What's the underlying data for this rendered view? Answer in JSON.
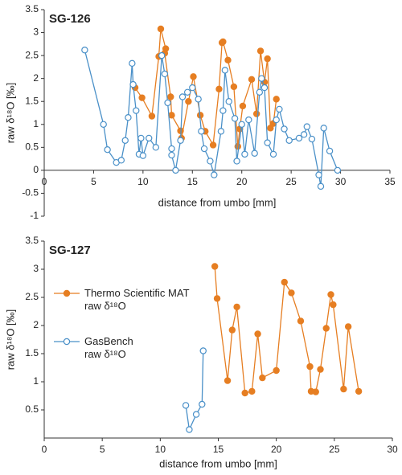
{
  "chart_data": [
    {
      "type": "line",
      "title": "SG-126",
      "xlabel": "distance from umbo [mm]",
      "ylabel": "raw δ¹⁸O [‰]",
      "xlim": [
        0,
        35
      ],
      "xticks": [
        0,
        5,
        10,
        15,
        20,
        25,
        30,
        35
      ],
      "ylim": [
        -1,
        3.5
      ],
      "yticks": [
        -1,
        -0.5,
        0,
        0.5,
        1,
        1.5,
        2,
        2.5,
        3,
        3.5
      ],
      "series": [
        {
          "color": "#e67e22",
          "marker": "filled",
          "x": [
            9.2,
            9.9,
            10.9,
            11.6,
            11.8,
            12.3,
            12.2,
            12.8,
            12.9,
            13.8,
            13.9,
            14.6,
            15.1,
            15.8,
            16.3,
            17.1,
            17.7,
            18.0,
            18.1,
            18.6,
            19.2,
            19.6,
            19.8,
            20.1,
            21.0,
            21.5,
            21.9,
            22.3,
            22.6,
            22.9,
            23.2,
            23.5
          ],
          "values": [
            1.8,
            1.58,
            1.18,
            2.48,
            3.08,
            2.65,
            2.55,
            1.6,
            1.2,
            0.86,
            0.7,
            1.5,
            2.04,
            1.2,
            0.85,
            0.55,
            1.77,
            2.78,
            2.8,
            2.4,
            1.82,
            0.52,
            0.9,
            1.4,
            1.98,
            1.23,
            2.6,
            1.92,
            2.43,
            0.92,
            1.02,
            1.55
          ]
        },
        {
          "color": "#4a90c8",
          "marker": "open",
          "x": [
            4.1,
            6.0,
            6.4,
            7.3,
            7.8,
            8.2,
            8.5,
            8.9,
            9.0,
            9.3,
            9.6,
            9.8,
            10.0,
            10.6,
            11.3,
            11.9,
            12.2,
            12.5,
            12.9,
            12.9,
            13.3,
            13.8,
            14.0,
            14.5,
            15.0,
            15.6,
            15.9,
            16.2,
            16.8,
            17.2,
            17.9,
            18.1,
            18.3,
            18.7,
            19.3,
            19.5,
            20.0,
            20.3,
            20.7,
            21.3,
            21.8,
            22.0,
            22.3,
            22.6,
            23.2,
            23.5,
            23.8,
            24.3,
            24.8,
            25.8,
            26.3,
            26.6,
            27.1,
            27.8,
            28.0,
            28.3,
            28.9,
            29.7
          ],
          "values": [
            2.62,
            1.0,
            0.45,
            0.17,
            0.22,
            0.65,
            1.15,
            2.33,
            1.87,
            1.3,
            0.35,
            0.7,
            0.32,
            0.7,
            0.5,
            2.5,
            2.1,
            1.47,
            0.47,
            0.33,
            0.0,
            0.65,
            1.6,
            1.7,
            1.8,
            1.55,
            0.85,
            0.47,
            0.2,
            -0.1,
            0.85,
            1.3,
            2.18,
            1.5,
            1.13,
            0.2,
            1.0,
            0.35,
            1.1,
            0.37,
            1.7,
            2.0,
            1.8,
            0.6,
            0.35,
            1.1,
            1.33,
            0.9,
            0.65,
            0.7,
            0.78,
            0.95,
            0.68,
            -0.1,
            -0.35,
            0.92,
            0.42,
            0.0
          ]
        }
      ]
    },
    {
      "type": "line",
      "title": "SG-127",
      "xlabel": "distance from umbo [mm]",
      "ylabel": "raw δ¹⁸O [‰]",
      "xlim": [
        0,
        30
      ],
      "xticks": [
        0,
        5,
        10,
        15,
        20,
        25,
        30
      ],
      "ylim": [
        0,
        3.5
      ],
      "yticks": [
        0.5,
        1,
        1.5,
        2,
        2.5,
        3,
        3.5
      ],
      "legend": "upper left",
      "series": [
        {
          "name": "Thermo Scientific MAT\nraw δ¹⁸O",
          "color": "#e67e22",
          "marker": "filled",
          "x": [
            14.7,
            14.9,
            15.8,
            16.2,
            16.6,
            17.3,
            17.9,
            18.4,
            18.8,
            20.0,
            20.7,
            21.3,
            22.1,
            22.9,
            23.0,
            23.4,
            23.8,
            24.3,
            24.7,
            24.9,
            25.8,
            26.2,
            27.1
          ],
          "values": [
            3.05,
            2.48,
            1.02,
            1.92,
            2.33,
            0.8,
            0.83,
            1.85,
            1.07,
            1.2,
            2.77,
            2.58,
            2.08,
            1.27,
            0.83,
            0.82,
            1.22,
            1.95,
            2.55,
            2.37,
            0.87,
            1.98,
            0.83
          ]
        },
        {
          "name": "GasBench\nraw δ¹⁸O",
          "color": "#4a90c8",
          "marker": "open",
          "x": [
            12.2,
            12.5,
            13.1,
            13.6,
            13.7
          ],
          "values": [
            0.58,
            0.15,
            0.42,
            0.6,
            1.55
          ]
        }
      ]
    }
  ]
}
